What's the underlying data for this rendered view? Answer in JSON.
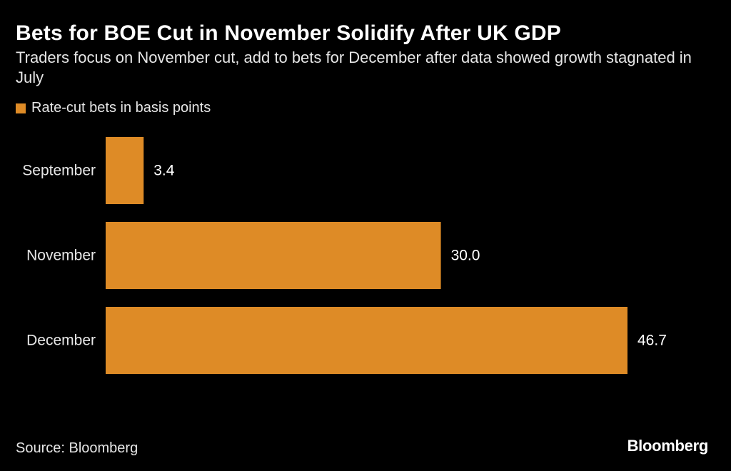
{
  "chart_data": {
    "type": "bar",
    "orientation": "horizontal",
    "title": "Bets for BOE Cut in November Solidify After UK GDP",
    "subtitle": "Traders focus on November cut, add to bets for December after data showed growth stagnated in July",
    "categories": [
      "September",
      "November",
      "December"
    ],
    "series": [
      {
        "name": "Rate-cut bets in basis points",
        "values": [
          3.4,
          30.0,
          46.7
        ],
        "value_labels": [
          "3.4",
          "30.0",
          "46.7"
        ],
        "color": "#de8b26"
      }
    ],
    "xlim": [
      0,
      50
    ],
    "grid": false,
    "legend_position": "top-left",
    "source": "Source: Bloomberg",
    "brand": "Bloomberg"
  },
  "colors": {
    "background": "#000000",
    "bar": "#de8b26"
  }
}
